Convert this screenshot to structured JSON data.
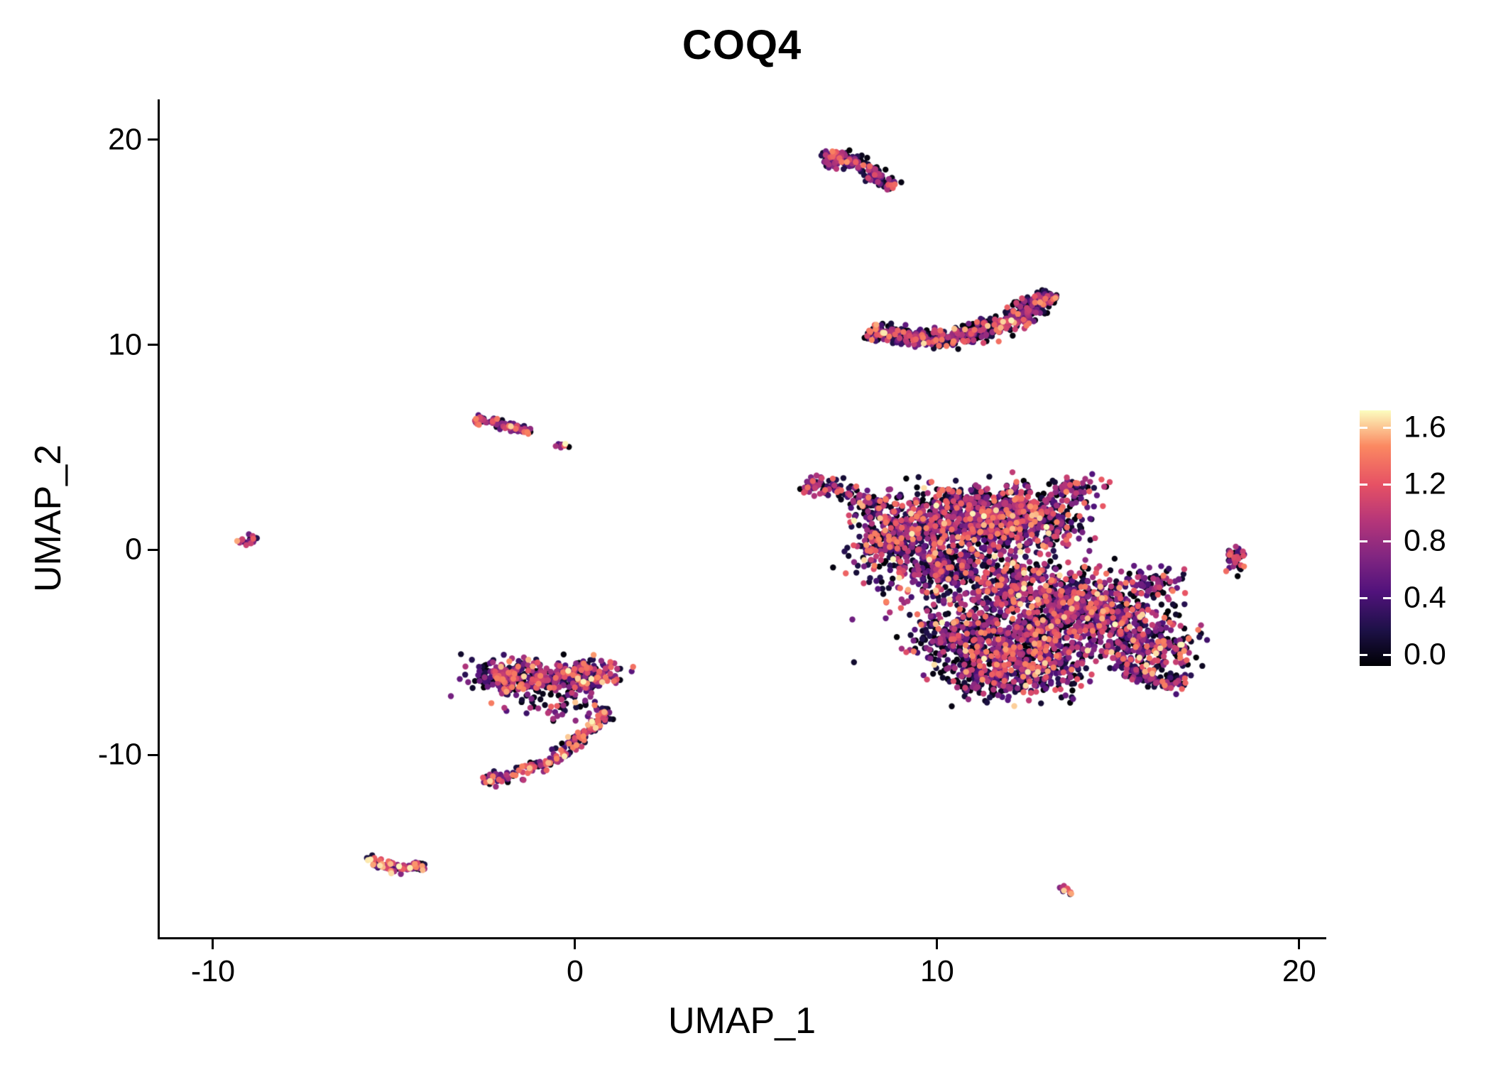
{
  "title": "COQ4",
  "axes": {
    "x_label": "UMAP_1",
    "y_label": "UMAP_2"
  },
  "chart_data": {
    "type": "scatter",
    "title": "COQ4",
    "xlabel": "UMAP_1",
    "ylabel": "UMAP_2",
    "xlim": [
      -11.47,
      20.69
    ],
    "ylim": [
      -18.9,
      21.97
    ],
    "x_ticks": [
      -10,
      0,
      10,
      20
    ],
    "y_ticks": [
      -10,
      0,
      10,
      20
    ],
    "grid": false,
    "point_radius_px": 4.2,
    "legend_position": "right",
    "colorbar": {
      "palette": "magma",
      "min": 0.0,
      "max": 1.6,
      "bar_range": [
        -0.08,
        1.72
      ],
      "label_values": [
        1.6,
        1.2,
        0.8,
        0.4,
        0.0
      ],
      "stops": [
        [
          0.0,
          "#000004"
        ],
        [
          0.14,
          "#1d1147"
        ],
        [
          0.29,
          "#51127c"
        ],
        [
          0.43,
          "#822681"
        ],
        [
          0.57,
          "#b63679"
        ],
        [
          0.71,
          "#e65164"
        ],
        [
          0.86,
          "#fb8861"
        ],
        [
          1.0,
          "#fcfdbf"
        ]
      ]
    },
    "value_bins": {
      "dark": [
        0.0,
        0.28
      ],
      "mid": [
        0.35,
        1.0
      ],
      "high": [
        1.0,
        1.35
      ],
      "top": [
        1.3,
        1.6
      ]
    },
    "clusters": [
      {
        "name": "top-comet",
        "mix": {
          "dark": 0.55,
          "mid": 0.35,
          "high": 0.08,
          "top": 0.02
        },
        "parts": [
          {
            "kind": "blob",
            "cx": 7.25,
            "cy": 19.05,
            "rx": 0.45,
            "ry": 0.36,
            "n": 90
          },
          {
            "kind": "band",
            "path": [
              [
                7.1,
                19.2
              ],
              [
                7.7,
                18.95
              ],
              [
                8.25,
                18.4
              ],
              [
                8.8,
                17.65
              ]
            ],
            "width": 0.3,
            "n": 140
          }
        ]
      },
      {
        "name": "upper-crescent",
        "mix": {
          "dark": 0.55,
          "mid": 0.35,
          "high": 0.08,
          "top": 0.02
        },
        "parts": [
          {
            "kind": "band",
            "path": [
              [
                8.15,
                10.75
              ],
              [
                8.8,
                10.45
              ],
              [
                9.6,
                10.3
              ],
              [
                10.6,
                10.35
              ],
              [
                11.5,
                10.75
              ],
              [
                12.3,
                11.45
              ],
              [
                13.0,
                12.3
              ]
            ],
            "width": 0.42,
            "n": 620
          },
          {
            "kind": "blob",
            "cx": 13.0,
            "cy": 12.35,
            "rx": 0.3,
            "ry": 0.28,
            "n": 40
          }
        ]
      },
      {
        "name": "main-mass",
        "mix": {
          "dark": 0.44,
          "mid": 0.4,
          "high": 0.13,
          "top": 0.03
        },
        "parts": [
          {
            "kind": "band",
            "path": [
              [
                6.35,
                3.35
              ],
              [
                7.1,
                2.95
              ],
              [
                7.9,
                2.5
              ],
              [
                8.6,
                2.0
              ]
            ],
            "width": 0.45,
            "n": 120
          },
          {
            "kind": "blob",
            "cx": 9.3,
            "cy": 1.1,
            "rx": 1.4,
            "ry": 1.7,
            "n": 350
          },
          {
            "kind": "blob",
            "cx": 11.2,
            "cy": 1.6,
            "rx": 1.6,
            "ry": 1.5,
            "n": 600
          },
          {
            "kind": "blob",
            "cx": 12.9,
            "cy": 1.5,
            "rx": 1.2,
            "ry": 1.4,
            "n": 320
          },
          {
            "kind": "blob",
            "cx": 10.3,
            "cy": -0.9,
            "rx": 1.5,
            "ry": 1.2,
            "n": 260
          },
          {
            "kind": "blob",
            "cx": 12.3,
            "cy": -1.8,
            "rx": 1.6,
            "ry": 1.3,
            "n": 300
          },
          {
            "kind": "blob",
            "cx": 14.3,
            "cy": -3.0,
            "rx": 1.7,
            "ry": 1.6,
            "n": 550
          },
          {
            "kind": "blob",
            "cx": 15.9,
            "cy": -4.6,
            "rx": 1.2,
            "ry": 1.3,
            "n": 260
          },
          {
            "kind": "blob",
            "cx": 12.6,
            "cy": -4.6,
            "rx": 1.7,
            "ry": 1.5,
            "n": 480
          },
          {
            "kind": "blob",
            "cx": 10.6,
            "cy": -4.3,
            "rx": 1.2,
            "ry": 1.4,
            "n": 240
          },
          {
            "kind": "blob",
            "cx": 11.9,
            "cy": -6.3,
            "rx": 1.8,
            "ry": 1.0,
            "n": 300
          },
          {
            "kind": "band",
            "path": [
              [
                15.2,
                -5.9
              ],
              [
                16.1,
                -6.3
              ],
              [
                16.85,
                -6.6
              ]
            ],
            "width": 0.4,
            "n": 100
          },
          {
            "kind": "blob",
            "cx": 11.8,
            "cy": -2.2,
            "rx": 3.6,
            "ry": 2.8,
            "n": 200
          },
          {
            "kind": "blob",
            "cx": 8.4,
            "cy": 0.1,
            "rx": 0.8,
            "ry": 1.0,
            "n": 100
          },
          {
            "kind": "blob",
            "cx": 13.8,
            "cy": 3.0,
            "rx": 0.8,
            "ry": 0.6,
            "n": 50
          },
          {
            "kind": "blob",
            "cx": 16.0,
            "cy": -1.6,
            "rx": 0.7,
            "ry": 0.7,
            "n": 60
          }
        ]
      },
      {
        "name": "left-small-strip",
        "mix": {
          "dark": 0.3,
          "mid": 0.45,
          "high": 0.18,
          "top": 0.07
        },
        "parts": [
          {
            "kind": "band",
            "path": [
              [
                -2.75,
                6.35
              ],
              [
                -2.2,
                6.2
              ],
              [
                -1.6,
                5.95
              ],
              [
                -1.2,
                5.75
              ]
            ],
            "width": 0.2,
            "n": 85
          },
          {
            "kind": "blob",
            "cx": -0.35,
            "cy": 5.1,
            "rx": 0.2,
            "ry": 0.12,
            "n": 9
          }
        ]
      },
      {
        "name": "far-left-dot",
        "mix": {
          "dark": 0.3,
          "mid": 0.5,
          "high": 0.15,
          "top": 0.05
        },
        "parts": [
          {
            "kind": "band",
            "path": [
              [
                -9.3,
                0.3
              ],
              [
                -8.8,
                0.6
              ]
            ],
            "width": 0.16,
            "n": 22
          }
        ]
      },
      {
        "name": "lower-center-hook",
        "mix": {
          "dark": 0.4,
          "mid": 0.42,
          "high": 0.14,
          "top": 0.04
        },
        "parts": [
          {
            "kind": "blob",
            "cx": -1.7,
            "cy": -6.2,
            "rx": 1.15,
            "ry": 0.8,
            "n": 240
          },
          {
            "kind": "blob",
            "cx": 0.2,
            "cy": -6.1,
            "rx": 1.05,
            "ry": 0.7,
            "n": 200
          },
          {
            "kind": "blob",
            "cx": -0.5,
            "cy": -7.3,
            "rx": 1.3,
            "ry": 0.9,
            "n": 70
          },
          {
            "kind": "band",
            "path": [
              [
                0.95,
                -7.7
              ],
              [
                0.5,
                -8.7
              ],
              [
                -0.3,
                -9.8
              ],
              [
                -1.2,
                -10.7
              ],
              [
                -2.1,
                -11.15
              ],
              [
                -2.55,
                -11.2
              ]
            ],
            "width": 0.28,
            "n": 190,
            "mix": {
              "dark": 0.3,
              "mid": 0.4,
              "high": 0.22,
              "top": 0.08
            }
          }
        ]
      },
      {
        "name": "bottom-left-strip",
        "mix": {
          "dark": 0.3,
          "mid": 0.45,
          "high": 0.18,
          "top": 0.07
        },
        "parts": [
          {
            "kind": "band",
            "path": [
              [
                -5.8,
                -15.15
              ],
              [
                -5.1,
                -15.45
              ],
              [
                -4.55,
                -15.6
              ],
              [
                -4.15,
                -15.35
              ]
            ],
            "width": 0.26,
            "n": 100
          }
        ]
      },
      {
        "name": "bottom-right-dot",
        "mix": {
          "dark": 0.3,
          "mid": 0.5,
          "high": 0.15,
          "top": 0.05
        },
        "parts": [
          {
            "kind": "band",
            "path": [
              [
                13.35,
                -16.45
              ],
              [
                13.8,
                -16.75
              ]
            ],
            "width": 0.14,
            "n": 14
          }
        ]
      },
      {
        "name": "right-small-cluster",
        "mix": {
          "dark": 0.35,
          "mid": 0.4,
          "high": 0.18,
          "top": 0.07
        },
        "parts": [
          {
            "kind": "blob",
            "cx": 18.2,
            "cy": -0.55,
            "rx": 0.28,
            "ry": 0.6,
            "n": 40
          }
        ]
      }
    ]
  }
}
